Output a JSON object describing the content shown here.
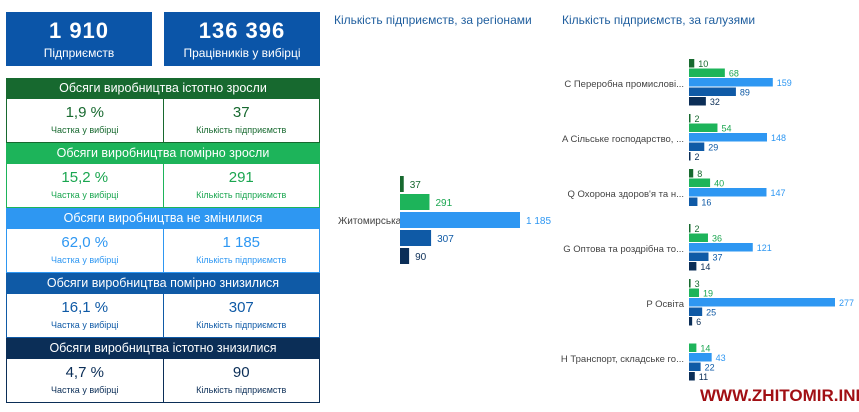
{
  "kpis": [
    {
      "value": "1 910",
      "label": "Підприємств"
    },
    {
      "value": "136 396",
      "label": "Працівників у вибірці"
    }
  ],
  "sections": [
    {
      "title": "Обсяги виробництва істотно зросли",
      "share": "1,9 %",
      "share_label": "Частка у вибірці",
      "count": "37",
      "count_label": "Кількість підприємств",
      "color": "#17692f",
      "text_color": "#17692f"
    },
    {
      "title": "Обсяги виробництва помірно зросли",
      "share": "15,2 %",
      "share_label": "Частка у вибірці",
      "count": "291",
      "count_label": "Кількість підприємств",
      "color": "#1db45a",
      "text_color": "#1aa650"
    },
    {
      "title": "Обсяги виробництва не змінилися",
      "share": "62,0 %",
      "share_label": "Частка у вибірці",
      "count": "1 185",
      "count_label": "Кількість підприємств",
      "color": "#2e97f2",
      "text_color": "#2e97f2"
    },
    {
      "title": "Обсяги виробництва помірно знизилися",
      "share": "16,1 %",
      "share_label": "Частка у вибірці",
      "count": "307",
      "count_label": "Кількість підприємств",
      "color": "#0f5aa6",
      "text_color": "#0f5aa6"
    },
    {
      "title": "Обсяги виробництва істотно знизилися",
      "share": "4,7 %",
      "share_label": "Частка у вибірці",
      "count": "90",
      "count_label": "Кількість підприємств",
      "color": "#0b2e57",
      "text_color": "#0b2e57"
    }
  ],
  "chart_data": [
    {
      "type": "bar",
      "orientation": "horizontal",
      "title": "Кількість підприємств, за регіонами",
      "categories": [
        "Житомирська"
      ],
      "series": [
        {
          "name": "Обсяги виробництва істотно зросли",
          "values": [
            37
          ]
        },
        {
          "name": "Обсяги виробництва помірно зросли",
          "values": [
            291
          ]
        },
        {
          "name": "Обсяги виробництва не змінилися",
          "values": [
            1185
          ]
        },
        {
          "name": "Обсяги виробництва помірно знизилися",
          "values": [
            307
          ]
        },
        {
          "name": "Обсяги виробництва істотно знизилися",
          "values": [
            90
          ]
        }
      ],
      "value_labels": [
        [
          "37",
          "291",
          "1 185",
          "307",
          "90"
        ]
      ]
    },
    {
      "type": "bar",
      "orientation": "horizontal",
      "title": "Кількість підприємств, за галузями",
      "categories": [
        "C Переробна промислові...",
        "A Сільське господарство, ...",
        "Q Охорона здоров'я та н...",
        "G Оптова та роздрібна то...",
        "P Освіта",
        "H Транспорт, складське го..."
      ],
      "series": [
        {
          "name": "Обсяги виробництва істотно зросли",
          "values": [
            10,
            2,
            8,
            2,
            3,
            null
          ]
        },
        {
          "name": "Обсяги виробництва помірно зросли",
          "values": [
            68,
            54,
            40,
            36,
            19,
            14
          ]
        },
        {
          "name": "Обсяги виробництва не змінилися",
          "values": [
            159,
            148,
            147,
            121,
            277,
            43
          ]
        },
        {
          "name": "Обсяги виробництва помірно знизилися",
          "values": [
            89,
            29,
            16,
            37,
            25,
            22
          ]
        },
        {
          "name": "Обсяги виробництва істотно знизилися",
          "values": [
            32,
            2,
            null,
            14,
            6,
            11
          ]
        }
      ]
    }
  ],
  "series_colors": [
    "#17692f",
    "#1db45a",
    "#2e97f2",
    "#0f5aa6",
    "#0b2e57"
  ],
  "label_colors": [
    "#17692f",
    "#1aa650",
    "#2e97f2",
    "#0f5aa6",
    "#0b2e57"
  ],
  "watermark": "WWW.ZHITOMIR.INFO"
}
